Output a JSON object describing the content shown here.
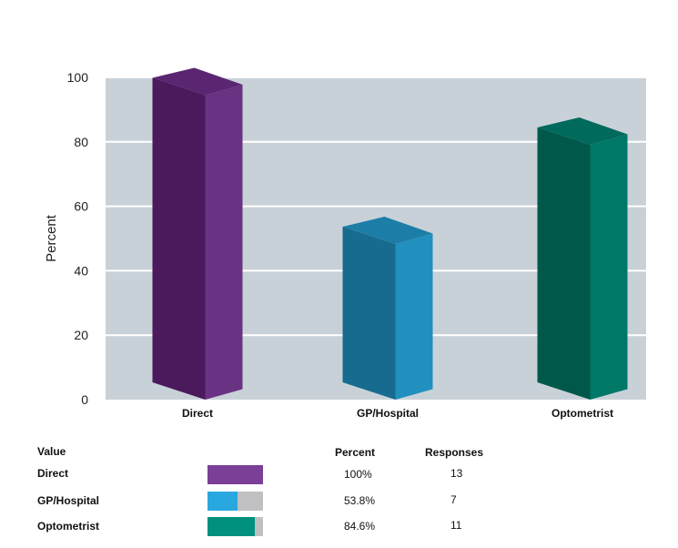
{
  "chart_data": {
    "type": "bar",
    "categories": [
      "Direct",
      "GP/Hospital",
      "Optometrist"
    ],
    "values": [
      100,
      53.8,
      84.6
    ],
    "ylabel": "Percent",
    "xlabel": "",
    "ylim": [
      0,
      100
    ],
    "yticks": [
      0,
      20,
      40,
      60,
      80,
      100
    ],
    "grid": true,
    "colors": [
      {
        "front": "#4a1a5c",
        "side": "#6a3282",
        "top": "#5a2672"
      },
      {
        "front": "#176b8e",
        "side": "#2190bf",
        "top": "#1c7ea7"
      },
      {
        "front": "#00584a",
        "side": "#007868",
        "top": "#006a5c"
      }
    ],
    "plot_background": "#c9d1d8",
    "grid_color": "#ffffff"
  },
  "legend": {
    "headers": {
      "value": "Value",
      "percent": "Percent",
      "responses": "Responses"
    },
    "rows": [
      {
        "name": "Direct",
        "percent_label": "100%",
        "responses": "13",
        "fraction": 1.0,
        "color": "#7b3f98"
      },
      {
        "name": "GP/Hospital",
        "percent_label": "53.8%",
        "responses": "7",
        "fraction": 0.538,
        "color": "#29a8e0"
      },
      {
        "name": "Optometrist",
        "percent_label": "84.6%",
        "responses": "11",
        "fraction": 0.846,
        "color": "#00907e"
      }
    ]
  }
}
